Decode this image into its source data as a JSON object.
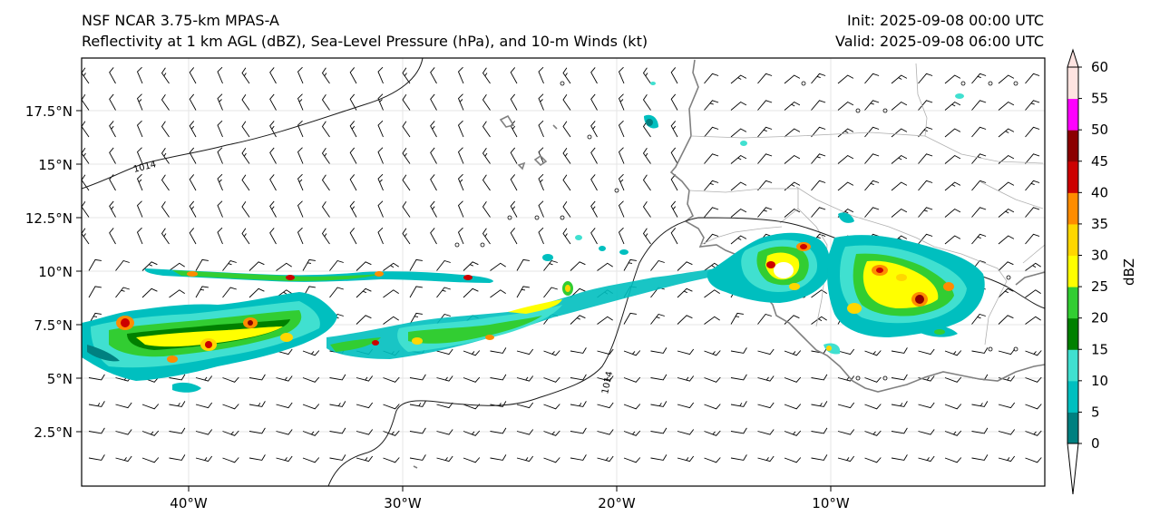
{
  "titles": {
    "left_line1": "NSF NCAR 3.75-km MPAS-A",
    "left_line2": "Reflectivity at 1 km AGL (dBZ), Sea-Level Pressure (hPa), and 10-m Winds (kt)",
    "right_line1": "Init: 2025-09-08 00:00 UTC",
    "right_line2": "Valid: 2025-09-08 06:00 UTC"
  },
  "map": {
    "lat_ticks": [
      "17.5°N",
      "15°N",
      "12.5°N",
      "10°N",
      "7.5°N",
      "5°N",
      "2.5°N"
    ],
    "lon_ticks": [
      "40°W",
      "30°W",
      "20°W",
      "10°W"
    ],
    "isobar_labels": [
      "1014",
      "1014"
    ],
    "coastline_color": "#808080",
    "isobar_color": "#000000",
    "grid_color": "#e6e6e6"
  },
  "colorbar": {
    "label": "dBZ",
    "ticks": [
      "0",
      "5",
      "10",
      "15",
      "20",
      "25",
      "30",
      "35",
      "40",
      "45",
      "50",
      "55",
      "60"
    ],
    "colors": [
      "#008080",
      "#00bfbf",
      "#40e0d0",
      "#008000",
      "#32cd32",
      "#ffff00",
      "#ffd700",
      "#ff8c00",
      "#cc0000",
      "#8b0000",
      "#ff00ff",
      "#ffe4e1"
    ],
    "under_color": "#ffffff",
    "over_color": "#ffe4e1"
  }
}
